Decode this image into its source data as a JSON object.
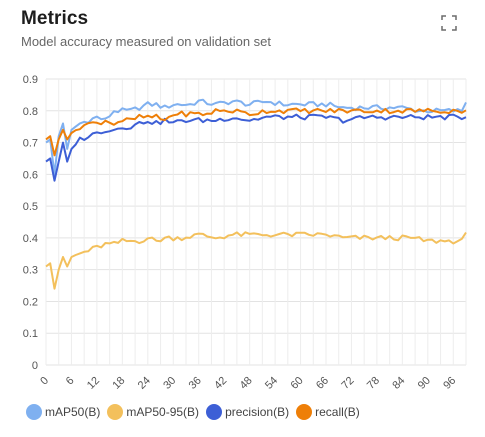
{
  "header": {
    "title": "Metrics",
    "subtitle": "Model accuracy measured on validation set"
  },
  "icons": {
    "expand": "expand-icon"
  },
  "chart_data": {
    "type": "line",
    "title": "Metrics",
    "subtitle": "Model accuracy measured on validation set",
    "xlabel": "",
    "ylabel": "",
    "xlim": [
      0,
      99
    ],
    "ylim": [
      0,
      0.9
    ],
    "grid": true,
    "legend_position": "bottom-left",
    "y_ticks": [
      "0",
      "0.1",
      "0.2",
      "0.3",
      "0.4",
      "0.5",
      "0.6",
      "0.7",
      "0.8",
      "0.9"
    ],
    "x_ticks": [
      "0",
      "6",
      "12",
      "18",
      "24",
      "30",
      "36",
      "42",
      "48",
      "54",
      "60",
      "66",
      "72",
      "78",
      "84",
      "90",
      "96"
    ],
    "series": [
      {
        "name": "mAP50(B)",
        "color": "#7fb0f0",
        "keypoints": [
          [
            0,
            0.7
          ],
          [
            1,
            0.71
          ],
          [
            2,
            0.6
          ],
          [
            3,
            0.72
          ],
          [
            4,
            0.76
          ],
          [
            5,
            0.68
          ],
          [
            6,
            0.74
          ],
          [
            7,
            0.75
          ],
          [
            8,
            0.76
          ],
          [
            10,
            0.77
          ],
          [
            12,
            0.78
          ],
          [
            14,
            0.77
          ],
          [
            16,
            0.8
          ],
          [
            18,
            0.8
          ],
          [
            20,
            0.8
          ],
          [
            22,
            0.81
          ],
          [
            24,
            0.82
          ],
          [
            26,
            0.82
          ],
          [
            28,
            0.81
          ],
          [
            30,
            0.82
          ],
          [
            32,
            0.82
          ],
          [
            34,
            0.82
          ],
          [
            36,
            0.83
          ],
          [
            40,
            0.82
          ],
          [
            44,
            0.83
          ],
          [
            48,
            0.82
          ],
          [
            52,
            0.83
          ],
          [
            56,
            0.82
          ],
          [
            60,
            0.82
          ],
          [
            66,
            0.82
          ],
          [
            70,
            0.81
          ],
          [
            76,
            0.81
          ],
          [
            80,
            0.81
          ],
          [
            84,
            0.81
          ],
          [
            88,
            0.8
          ],
          [
            92,
            0.8
          ],
          [
            96,
            0.8
          ],
          [
            98,
            0.8
          ],
          [
            99,
            0.83
          ]
        ]
      },
      {
        "name": "mAP50-95(B)",
        "color": "#f3c05c",
        "keypoints": [
          [
            0,
            0.31
          ],
          [
            1,
            0.32
          ],
          [
            2,
            0.24
          ],
          [
            3,
            0.3
          ],
          [
            4,
            0.34
          ],
          [
            5,
            0.31
          ],
          [
            6,
            0.34
          ],
          [
            8,
            0.35
          ],
          [
            10,
            0.36
          ],
          [
            12,
            0.37
          ],
          [
            14,
            0.38
          ],
          [
            16,
            0.38
          ],
          [
            18,
            0.39
          ],
          [
            22,
            0.39
          ],
          [
            24,
            0.4
          ],
          [
            26,
            0.39
          ],
          [
            28,
            0.4
          ],
          [
            32,
            0.4
          ],
          [
            36,
            0.41
          ],
          [
            40,
            0.4
          ],
          [
            44,
            0.41
          ],
          [
            48,
            0.41
          ],
          [
            52,
            0.41
          ],
          [
            56,
            0.41
          ],
          [
            60,
            0.41
          ],
          [
            66,
            0.41
          ],
          [
            70,
            0.4
          ],
          [
            76,
            0.4
          ],
          [
            80,
            0.4
          ],
          [
            86,
            0.4
          ],
          [
            90,
            0.39
          ],
          [
            96,
            0.39
          ],
          [
            98,
            0.39
          ],
          [
            99,
            0.41
          ]
        ]
      },
      {
        "name": "precision(B)",
        "color": "#3d5fd6",
        "keypoints": [
          [
            0,
            0.64
          ],
          [
            1,
            0.65
          ],
          [
            2,
            0.58
          ],
          [
            3,
            0.64
          ],
          [
            4,
            0.7
          ],
          [
            5,
            0.64
          ],
          [
            6,
            0.68
          ],
          [
            7,
            0.7
          ],
          [
            8,
            0.71
          ],
          [
            10,
            0.72
          ],
          [
            12,
            0.73
          ],
          [
            14,
            0.74
          ],
          [
            16,
            0.74
          ],
          [
            18,
            0.75
          ],
          [
            20,
            0.75
          ],
          [
            22,
            0.76
          ],
          [
            24,
            0.77
          ],
          [
            26,
            0.76
          ],
          [
            28,
            0.77
          ],
          [
            30,
            0.76
          ],
          [
            32,
            0.77
          ],
          [
            36,
            0.77
          ],
          [
            40,
            0.77
          ],
          [
            44,
            0.78
          ],
          [
            48,
            0.77
          ],
          [
            52,
            0.78
          ],
          [
            56,
            0.78
          ],
          [
            60,
            0.78
          ],
          [
            66,
            0.78
          ],
          [
            70,
            0.77
          ],
          [
            76,
            0.78
          ],
          [
            80,
            0.78
          ],
          [
            84,
            0.78
          ],
          [
            88,
            0.78
          ],
          [
            92,
            0.78
          ],
          [
            96,
            0.78
          ],
          [
            99,
            0.78
          ]
        ]
      },
      {
        "name": "recall(B)",
        "color": "#ee7f08",
        "keypoints": [
          [
            0,
            0.71
          ],
          [
            1,
            0.72
          ],
          [
            2,
            0.66
          ],
          [
            3,
            0.71
          ],
          [
            4,
            0.74
          ],
          [
            5,
            0.71
          ],
          [
            6,
            0.73
          ],
          [
            8,
            0.75
          ],
          [
            10,
            0.76
          ],
          [
            12,
            0.76
          ],
          [
            14,
            0.77
          ],
          [
            16,
            0.76
          ],
          [
            18,
            0.77
          ],
          [
            20,
            0.77
          ],
          [
            22,
            0.78
          ],
          [
            24,
            0.78
          ],
          [
            26,
            0.78
          ],
          [
            28,
            0.77
          ],
          [
            30,
            0.79
          ],
          [
            34,
            0.79
          ],
          [
            38,
            0.79
          ],
          [
            40,
            0.8
          ],
          [
            44,
            0.8
          ],
          [
            48,
            0.79
          ],
          [
            52,
            0.8
          ],
          [
            56,
            0.8
          ],
          [
            60,
            0.8
          ],
          [
            64,
            0.8
          ],
          [
            68,
            0.8
          ],
          [
            72,
            0.8
          ],
          [
            76,
            0.8
          ],
          [
            80,
            0.8
          ],
          [
            84,
            0.8
          ],
          [
            88,
            0.8
          ],
          [
            92,
            0.8
          ],
          [
            96,
            0.8
          ],
          [
            99,
            0.8
          ]
        ]
      }
    ]
  }
}
